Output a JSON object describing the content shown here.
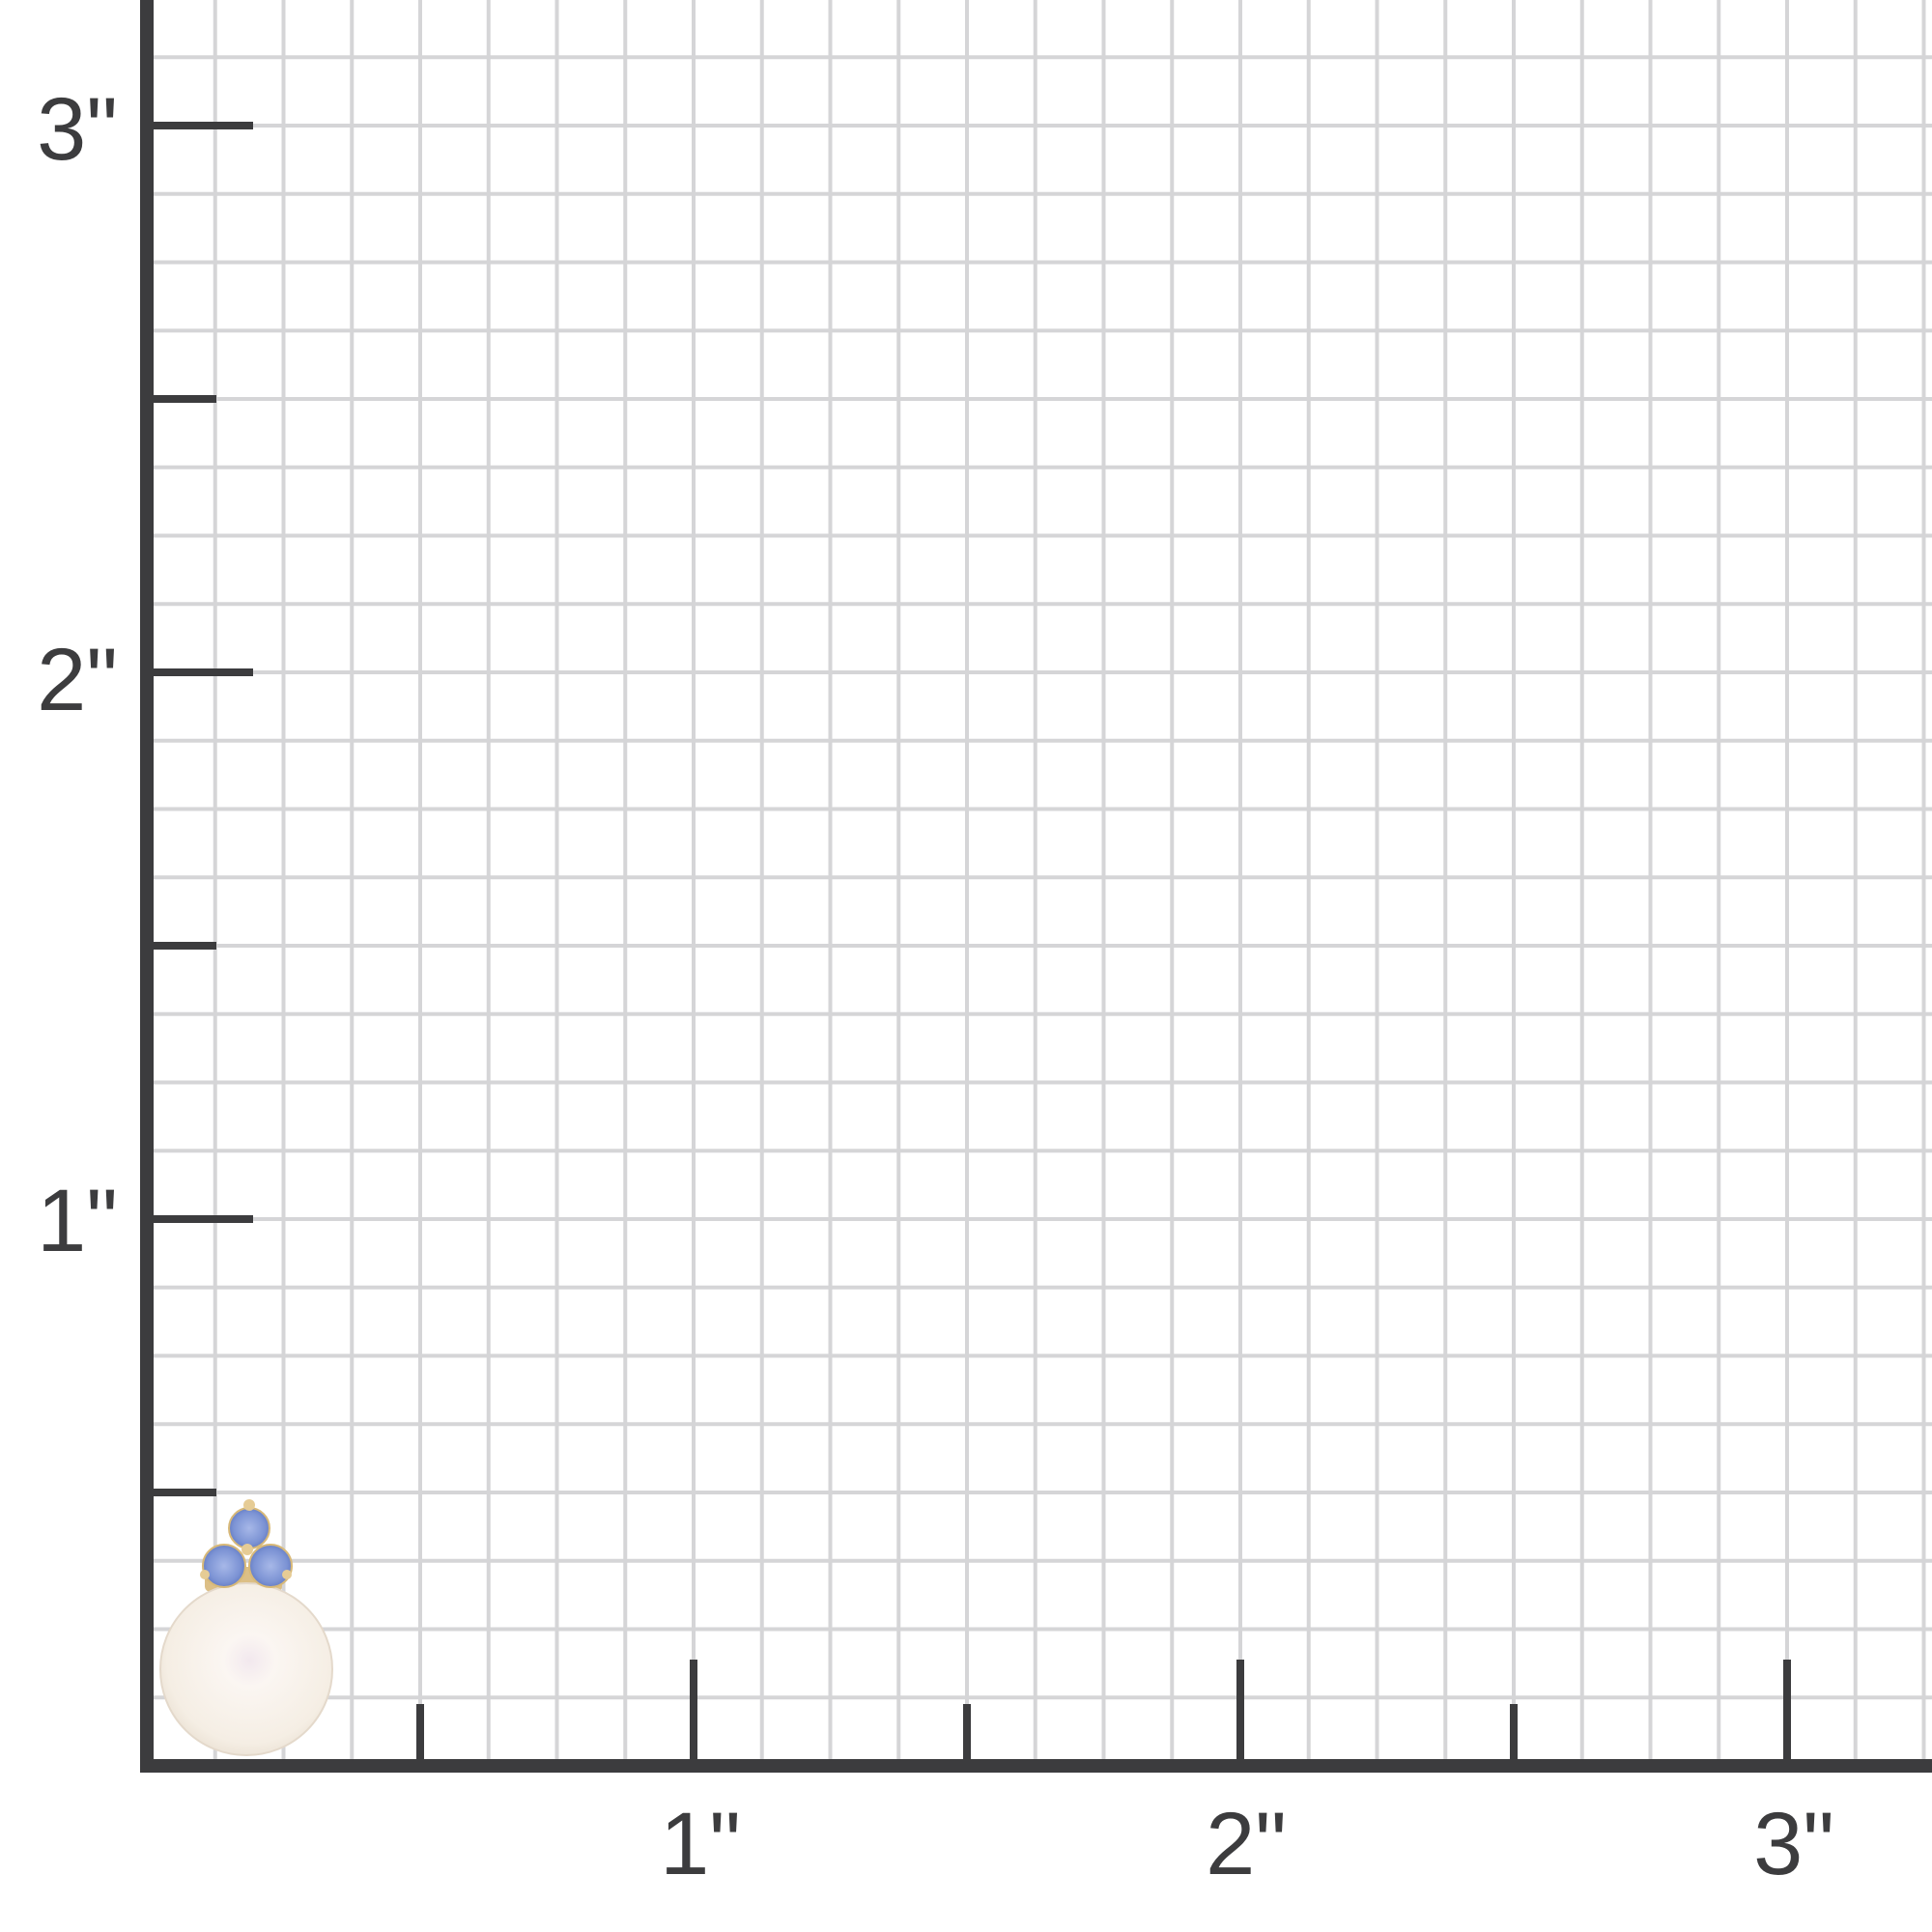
{
  "colors": {
    "grid": "#d5d5d7",
    "axis": "#3c3c3e",
    "pearl": "#f7f1ea",
    "sapphire": "#7d95d6",
    "gold": "#e2c690"
  },
  "axes": {
    "y_labels": [
      "1\"",
      "2\"",
      "3\""
    ],
    "x_labels": [
      "1\"",
      "2\"",
      "3\""
    ]
  },
  "product": {
    "image": "pearl-earring-with-three-blue-sapphires"
  }
}
